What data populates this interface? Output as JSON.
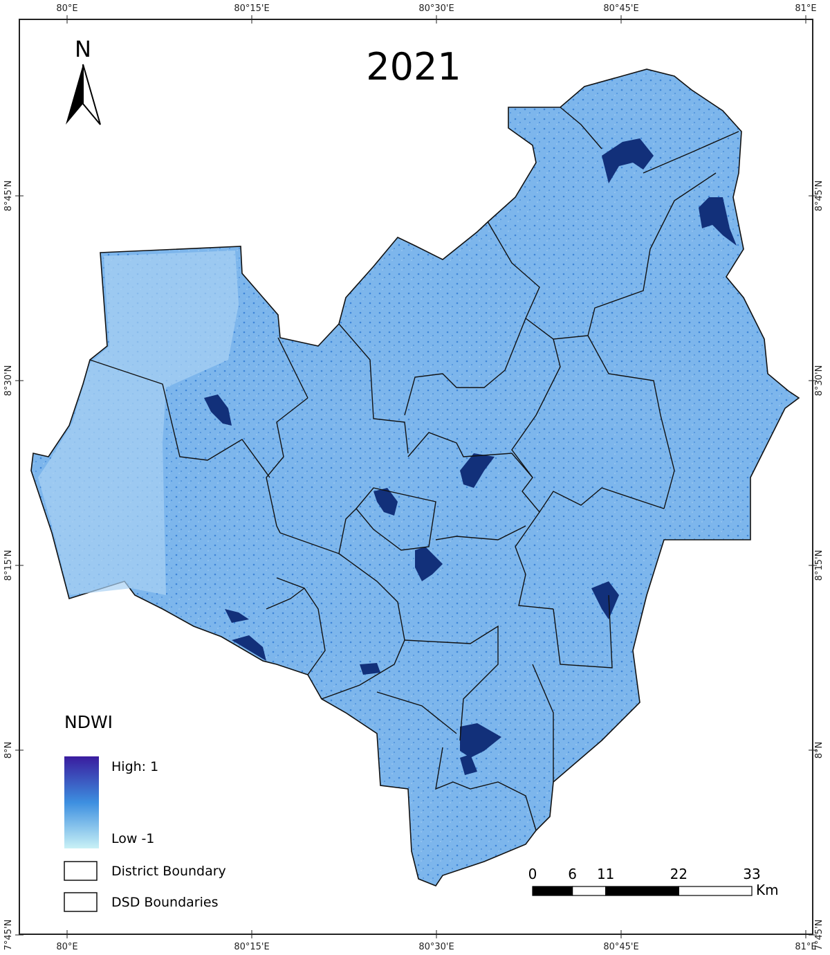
{
  "map": {
    "title": "2021",
    "north": "N",
    "longitude_labels": [
      "80°E",
      "80°15'E",
      "80°30'E",
      "80°45'E",
      "81°E"
    ],
    "latitude_labels": [
      "8°45'N",
      "8°30'N",
      "8°15'N",
      "8°N",
      "7°45'N"
    ],
    "legend": {
      "title": "NDWI",
      "high": "High: 1",
      "low": "Low -1",
      "items": [
        "District Boundary",
        "DSD Boundaries"
      ]
    },
    "scale_bar": {
      "ticks": [
        0,
        6,
        11,
        22,
        33
      ],
      "unit": "Km"
    }
  }
}
